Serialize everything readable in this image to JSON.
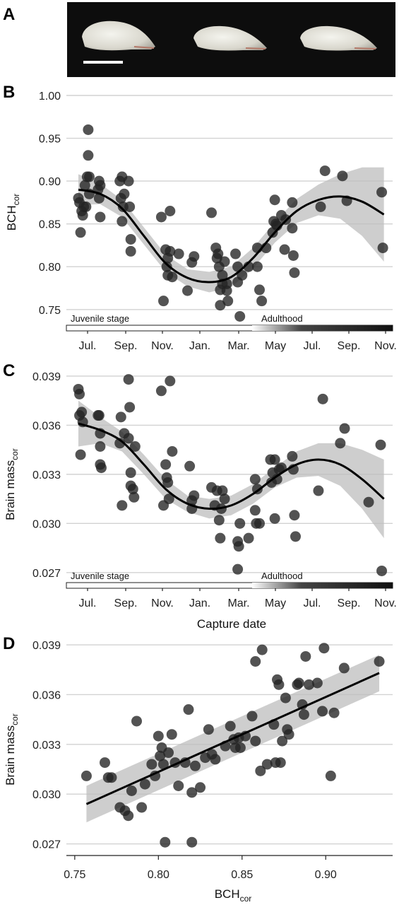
{
  "figure": {
    "panel_labels": [
      "A",
      "B",
      "C",
      "D"
    ]
  },
  "colors": {
    "points": "#222222",
    "fit_line": "#000000",
    "confidence_band": "#bdbdbd",
    "gridline": "#d2d2d2",
    "photo_background": "#0d0d0d"
  },
  "chart_data": [
    {
      "panel": "B",
      "type": "scatter",
      "title": "",
      "ylabel": "BCH",
      "ylabel_subscript": "cor",
      "xlabel": "",
      "x_ticks": [
        "Jul.",
        "Sep.",
        "Nov.",
        "Jan.",
        "Mar.",
        "May",
        "Jul.",
        "Sep.",
        "Nov."
      ],
      "ylim": [
        0.73,
        1.0
      ],
      "y_ticks": [
        "0.75",
        "0.80",
        "0.85",
        "0.90",
        "0.95",
        "1.00"
      ],
      "grid": true,
      "stage_labels": [
        "Juvenile stage",
        "Adulthood"
      ],
      "points": [
        [
          0.0,
          0.88
        ],
        [
          0.05,
          0.875
        ],
        [
          0.1,
          0.84
        ],
        [
          0.15,
          0.865
        ],
        [
          0.2,
          0.86
        ],
        [
          0.25,
          0.87
        ],
        [
          0.3,
          0.895
        ],
        [
          0.35,
          0.87
        ],
        [
          0.4,
          0.905
        ],
        [
          0.45,
          0.96
        ],
        [
          0.5,
          0.905
        ],
        [
          0.45,
          0.93
        ],
        [
          0.5,
          0.885
        ],
        [
          0.9,
          0.89
        ],
        [
          0.95,
          0.88
        ],
        [
          0.95,
          0.9
        ],
        [
          1.0,
          0.895
        ],
        [
          1.0,
          0.858
        ],
        [
          1.9,
          0.9
        ],
        [
          1.95,
          0.88
        ],
        [
          2.0,
          0.905
        ],
        [
          2.0,
          0.853
        ],
        [
          2.05,
          0.87
        ],
        [
          2.1,
          0.885
        ],
        [
          2.3,
          0.9
        ],
        [
          2.35,
          0.87
        ],
        [
          2.4,
          0.832
        ],
        [
          2.4,
          0.818
        ],
        [
          3.8,
          0.858
        ],
        [
          3.9,
          0.76
        ],
        [
          4.0,
          0.82
        ],
        [
          4.05,
          0.8
        ],
        [
          4.1,
          0.81
        ],
        [
          4.1,
          0.79
        ],
        [
          4.2,
          0.865
        ],
        [
          4.2,
          0.818
        ],
        [
          4.3,
          0.788
        ],
        [
          4.6,
          0.815
        ],
        [
          5.0,
          0.772
        ],
        [
          5.2,
          0.805
        ],
        [
          5.3,
          0.812
        ],
        [
          6.1,
          0.863
        ],
        [
          6.3,
          0.822
        ],
        [
          6.35,
          0.81
        ],
        [
          6.4,
          0.815
        ],
        [
          6.45,
          0.8
        ],
        [
          6.5,
          0.755
        ],
        [
          6.5,
          0.773
        ],
        [
          6.6,
          0.78
        ],
        [
          6.6,
          0.79
        ],
        [
          6.7,
          0.806
        ],
        [
          6.8,
          0.78
        ],
        [
          6.8,
          0.772
        ],
        [
          6.85,
          0.76
        ],
        [
          7.2,
          0.815
        ],
        [
          7.3,
          0.8
        ],
        [
          7.3,
          0.782
        ],
        [
          7.4,
          0.742
        ],
        [
          7.5,
          0.79
        ],
        [
          7.8,
          0.8
        ],
        [
          8.2,
          0.822
        ],
        [
          8.2,
          0.8
        ],
        [
          8.3,
          0.773
        ],
        [
          8.4,
          0.76
        ],
        [
          8.6,
          0.822
        ],
        [
          8.9,
          0.84
        ],
        [
          8.95,
          0.853
        ],
        [
          9.0,
          0.878
        ],
        [
          9.05,
          0.85
        ],
        [
          9.1,
          0.848
        ],
        [
          9.3,
          0.86
        ],
        [
          9.45,
          0.82
        ],
        [
          9.5,
          0.855
        ],
        [
          9.8,
          0.875
        ],
        [
          9.8,
          0.845
        ],
        [
          9.85,
          0.813
        ],
        [
          9.9,
          0.793
        ],
        [
          11.1,
          0.87
        ],
        [
          11.3,
          0.912
        ],
        [
          12.1,
          0.906
        ],
        [
          12.3,
          0.877
        ],
        [
          13.9,
          0.887
        ],
        [
          13.95,
          0.822
        ]
      ],
      "fit": [
        [
          0,
          0.89
        ],
        [
          1,
          0.885
        ],
        [
          2,
          0.868
        ],
        [
          3,
          0.836
        ],
        [
          4,
          0.804
        ],
        [
          5,
          0.787
        ],
        [
          6,
          0.782
        ],
        [
          7,
          0.788
        ],
        [
          8,
          0.81
        ],
        [
          9,
          0.84
        ],
        [
          10,
          0.865
        ],
        [
          11,
          0.878
        ],
        [
          12,
          0.882
        ],
        [
          13,
          0.876
        ],
        [
          14,
          0.861
        ]
      ],
      "ci_halfwidth": [
        0.018,
        0.012,
        0.01,
        0.01,
        0.01,
        0.01,
        0.012,
        0.012,
        0.012,
        0.012,
        0.014,
        0.018,
        0.026,
        0.04,
        0.055
      ]
    },
    {
      "panel": "C",
      "type": "scatter",
      "title": "",
      "ylabel": "Brain mass",
      "ylabel_subscript": "cor",
      "xlabel": "Capture date",
      "x_ticks": [
        "Jul.",
        "Sep.",
        "Nov.",
        "Jan.",
        "Mar.",
        "May",
        "Jul.",
        "Sep.",
        "Nov."
      ],
      "ylim": [
        0.0263,
        0.0393
      ],
      "y_ticks": [
        "0.027",
        "0.030",
        "0.033",
        "0.036",
        "0.039"
      ],
      "grid": true,
      "stage_labels": [
        "Juvenile stage",
        "Adulthood"
      ],
      "points": [
        [
          0.0,
          0.0382
        ],
        [
          0.05,
          0.0379
        ],
        [
          0.05,
          0.0366
        ],
        [
          0.1,
          0.0342
        ],
        [
          0.15,
          0.0368
        ],
        [
          0.2,
          0.0362
        ],
        [
          0.9,
          0.0366
        ],
        [
          0.95,
          0.0366
        ],
        [
          1.0,
          0.0355
        ],
        [
          1.0,
          0.0347
        ],
        [
          1.0,
          0.0336
        ],
        [
          1.05,
          0.0334
        ],
        [
          1.9,
          0.0349
        ],
        [
          1.95,
          0.0365
        ],
        [
          2.0,
          0.0311
        ],
        [
          2.1,
          0.0355
        ],
        [
          2.3,
          0.0388
        ],
        [
          2.35,
          0.0371
        ],
        [
          2.4,
          0.0331
        ],
        [
          2.4,
          0.0323
        ],
        [
          2.5,
          0.0321
        ],
        [
          2.55,
          0.0316
        ],
        [
          2.6,
          0.0347
        ],
        [
          2.3,
          0.0352
        ],
        [
          3.8,
          0.0381
        ],
        [
          3.9,
          0.0311
        ],
        [
          4.0,
          0.0336
        ],
        [
          4.05,
          0.0328
        ],
        [
          4.1,
          0.0325
        ],
        [
          4.15,
          0.0315
        ],
        [
          4.2,
          0.0387
        ],
        [
          4.3,
          0.0344
        ],
        [
          5.1,
          0.0335
        ],
        [
          5.2,
          0.0314
        ],
        [
          5.2,
          0.0309
        ],
        [
          5.3,
          0.0317
        ],
        [
          6.1,
          0.0322
        ],
        [
          6.25,
          0.0311
        ],
        [
          6.35,
          0.032
        ],
        [
          6.45,
          0.0302
        ],
        [
          6.5,
          0.0291
        ],
        [
          6.55,
          0.0309
        ],
        [
          6.6,
          0.032
        ],
        [
          6.7,
          0.0315
        ],
        [
          7.3,
          0.0272
        ],
        [
          7.3,
          0.0289
        ],
        [
          7.35,
          0.0286
        ],
        [
          7.4,
          0.03
        ],
        [
          7.8,
          0.0291
        ],
        [
          8.1,
          0.0327
        ],
        [
          8.1,
          0.0308
        ],
        [
          8.15,
          0.03
        ],
        [
          8.2,
          0.0321
        ],
        [
          8.3,
          0.03
        ],
        [
          8.8,
          0.0339
        ],
        [
          8.85,
          0.0325
        ],
        [
          8.9,
          0.0331
        ],
        [
          9.0,
          0.0339
        ],
        [
          9.0,
          0.0303
        ],
        [
          9.1,
          0.0327
        ],
        [
          9.2,
          0.0333
        ],
        [
          9.3,
          0.0334
        ],
        [
          9.8,
          0.0341
        ],
        [
          9.85,
          0.0333
        ],
        [
          9.9,
          0.0305
        ],
        [
          9.95,
          0.0292
        ],
        [
          11.0,
          0.032
        ],
        [
          11.2,
          0.0376
        ],
        [
          12.0,
          0.0349
        ],
        [
          12.2,
          0.0358
        ],
        [
          13.3,
          0.0313
        ],
        [
          13.85,
          0.0348
        ],
        [
          13.9,
          0.0271
        ]
      ],
      "fit": [
        [
          0,
          0.0361
        ],
        [
          1,
          0.0357
        ],
        [
          2,
          0.035
        ],
        [
          3,
          0.0336
        ],
        [
          4,
          0.0321
        ],
        [
          5,
          0.0312
        ],
        [
          6,
          0.0309
        ],
        [
          7,
          0.0311
        ],
        [
          8,
          0.0318
        ],
        [
          9,
          0.0328
        ],
        [
          10,
          0.0336
        ],
        [
          11,
          0.0339
        ],
        [
          12,
          0.0336
        ],
        [
          13,
          0.0327
        ],
        [
          14,
          0.0315
        ]
      ],
      "ci_halfwidth": [
        0.0014,
        0.0008,
        0.0006,
        0.0006,
        0.0006,
        0.0005,
        0.0006,
        0.0006,
        0.0006,
        0.0006,
        0.0008,
        0.001,
        0.0013,
        0.0018,
        0.0024
      ]
    },
    {
      "panel": "D",
      "type": "scatter",
      "title": "",
      "ylabel": "Brain mass",
      "ylabel_subscript": "cor",
      "xlabel": "BCH",
      "xlabel_subscript": "cor",
      "xlim": [
        0.745,
        0.94
      ],
      "ylim": [
        0.0263,
        0.0393
      ],
      "x_ticks": [
        "0.75",
        "0.80",
        "0.85",
        "0.90"
      ],
      "y_ticks": [
        "0.027",
        "0.030",
        "0.033",
        "0.036",
        "0.039"
      ],
      "grid": true,
      "points": [
        [
          0.757,
          0.0311
        ],
        [
          0.768,
          0.0319
        ],
        [
          0.77,
          0.031
        ],
        [
          0.772,
          0.031
        ],
        [
          0.777,
          0.0292
        ],
        [
          0.78,
          0.029
        ],
        [
          0.782,
          0.0287
        ],
        [
          0.784,
          0.0302
        ],
        [
          0.787,
          0.0344
        ],
        [
          0.79,
          0.0292
        ],
        [
          0.792,
          0.0306
        ],
        [
          0.796,
          0.0318
        ],
        [
          0.798,
          0.0311
        ],
        [
          0.8,
          0.0335
        ],
        [
          0.801,
          0.0323
        ],
        [
          0.802,
          0.0328
        ],
        [
          0.803,
          0.0318
        ],
        [
          0.804,
          0.0271
        ],
        [
          0.806,
          0.0325
        ],
        [
          0.808,
          0.0336
        ],
        [
          0.81,
          0.0319
        ],
        [
          0.812,
          0.0305
        ],
        [
          0.816,
          0.0319
        ],
        [
          0.818,
          0.0351
        ],
        [
          0.82,
          0.0301
        ],
        [
          0.82,
          0.0271
        ],
        [
          0.822,
          0.0317
        ],
        [
          0.825,
          0.0304
        ],
        [
          0.828,
          0.0322
        ],
        [
          0.83,
          0.0339
        ],
        [
          0.832,
          0.0324
        ],
        [
          0.834,
          0.0321
        ],
        [
          0.84,
          0.0329
        ],
        [
          0.843,
          0.0341
        ],
        [
          0.845,
          0.0333
        ],
        [
          0.846,
          0.0328
        ],
        [
          0.848,
          0.0334
        ],
        [
          0.849,
          0.0328
        ],
        [
          0.852,
          0.0335
        ],
        [
          0.856,
          0.0347
        ],
        [
          0.858,
          0.0332
        ],
        [
          0.858,
          0.038
        ],
        [
          0.861,
          0.0314
        ],
        [
          0.862,
          0.0387
        ],
        [
          0.865,
          0.0318
        ],
        [
          0.869,
          0.0342
        ],
        [
          0.87,
          0.0319
        ],
        [
          0.871,
          0.0369
        ],
        [
          0.872,
          0.0366
        ],
        [
          0.873,
          0.0319
        ],
        [
          0.874,
          0.0332
        ],
        [
          0.876,
          0.0358
        ],
        [
          0.877,
          0.0339
        ],
        [
          0.878,
          0.0336
        ],
        [
          0.883,
          0.0366
        ],
        [
          0.884,
          0.0367
        ],
        [
          0.886,
          0.0354
        ],
        [
          0.887,
          0.0348
        ],
        [
          0.888,
          0.0383
        ],
        [
          0.89,
          0.0366
        ],
        [
          0.895,
          0.0367
        ],
        [
          0.898,
          0.035
        ],
        [
          0.899,
          0.0388
        ],
        [
          0.903,
          0.0311
        ],
        [
          0.905,
          0.0349
        ],
        [
          0.911,
          0.0376
        ],
        [
          0.932,
          0.038
        ]
      ],
      "fit": [
        [
          0.757,
          0.0294
        ],
        [
          0.932,
          0.0373
        ]
      ],
      "ci_halfwidth": [
        0.0011,
        0.0011
      ]
    }
  ]
}
